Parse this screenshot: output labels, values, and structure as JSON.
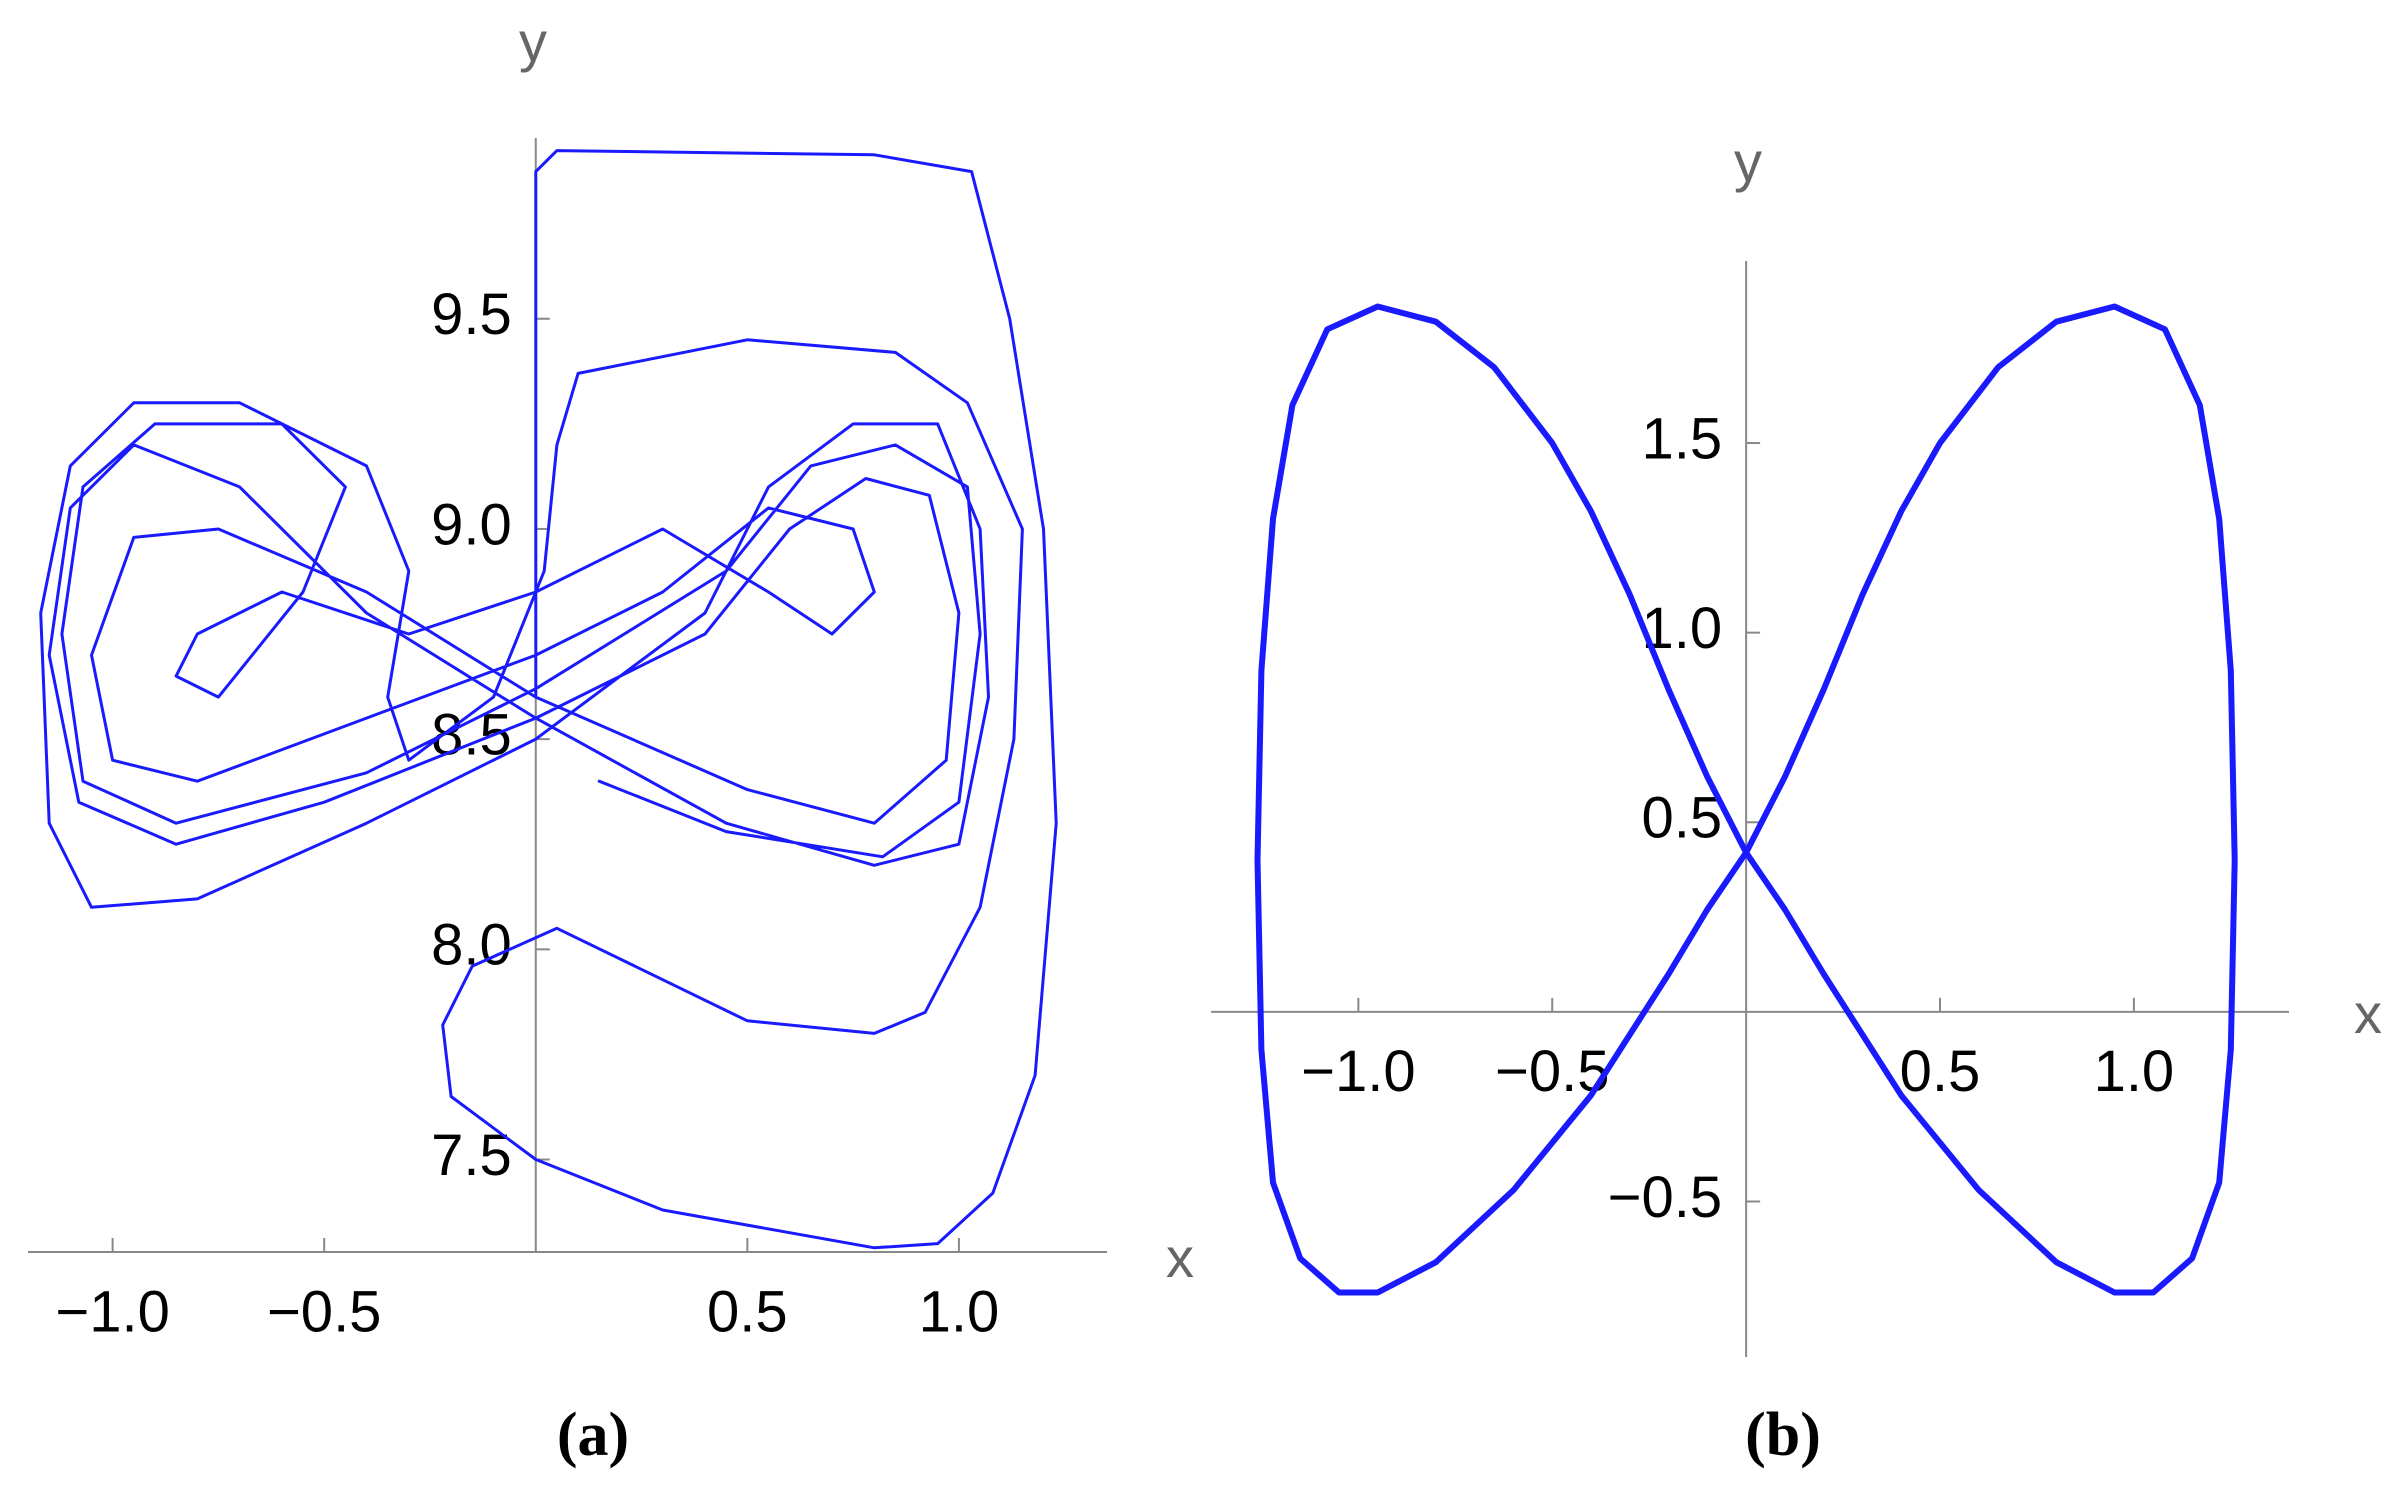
{
  "chart_data": [
    {
      "type": "line",
      "x_label": "x",
      "y_label": "y",
      "caption": "(a)",
      "color": "#1a1aff",
      "xlim": [
        -1.2,
        1.35
      ],
      "ylim": [
        7.28,
        9.93
      ],
      "xticks": [
        {
          "value": -1,
          "label": "−1.0"
        },
        {
          "value": -0.5,
          "label": "−0.5"
        },
        0.5,
        {
          "value": 1,
          "label": "1.0"
        }
      ],
      "yticks": [
        7.5,
        {
          "value": 8,
          "label": "8.0"
        },
        8.5,
        {
          "value": 9,
          "label": "9.0"
        },
        9.5
      ],
      "x": [
        0,
        0,
        0,
        0.05,
        0.8,
        1.03,
        1.12,
        1.2,
        1.23,
        1.18,
        1.08,
        0.95,
        0.8,
        0.3,
        0,
        -0.2,
        -0.22,
        -0.15,
        0.05,
        0.5,
        0.8,
        0.92,
        1.05,
        1.13,
        1.15,
        1.02,
        0.85,
        0.5,
        0.1,
        0.05,
        0.02,
        -0.1,
        -0.3,
        -0.35,
        -0.3,
        -0.4,
        -0.7,
        -0.95,
        -1.1,
        -1.17,
        -1.15,
        -1.05,
        -0.8,
        -0.4,
        0,
        0.4,
        0.55,
        0.75,
        0.95,
        1.05,
        1.07,
        1.0,
        0.8,
        0.45,
        0,
        -0.4,
        -0.7,
        -0.95,
        -1.1,
        -1.15,
        -1.08,
        -0.85,
        -0.5,
        0,
        0.4,
        0.6,
        0.78,
        0.93,
        1.0,
        0.97,
        0.8,
        0.5,
        0,
        -0.4,
        -0.75,
        -0.95,
        -1.05,
        -1.0,
        -0.8,
        -0.4,
        0,
        0.3,
        0.55,
        0.75,
        0.8,
        0.7,
        0.55,
        0.3,
        0,
        -0.3,
        -0.6,
        -0.8,
        -0.85,
        -0.75,
        -0.55,
        -0.45,
        -0.6,
        -0.9,
        -1.07,
        -1.12,
        -1.07,
        -0.85,
        -0.4,
        0,
        0.45,
        0.65,
        0.85,
        1.02,
        1.05,
        1.0,
        0.82,
        0.45,
        0.15
      ],
      "values": [
        8.6,
        9.3,
        9.85,
        9.9,
        9.89,
        9.85,
        9.5,
        9.0,
        8.3,
        7.7,
        7.42,
        7.3,
        7.29,
        7.38,
        7.5,
        7.65,
        7.82,
        7.96,
        8.05,
        7.83,
        7.8,
        7.85,
        8.1,
        8.5,
        9.0,
        9.3,
        9.42,
        9.45,
        9.37,
        9.2,
        8.9,
        8.6,
        8.45,
        8.6,
        8.9,
        9.15,
        9.3,
        9.3,
        9.15,
        8.8,
        8.3,
        8.1,
        8.12,
        8.3,
        8.5,
        8.8,
        9.1,
        9.25,
        9.25,
        9.0,
        8.6,
        8.25,
        8.2,
        8.3,
        8.55,
        8.8,
        9.1,
        9.2,
        9.05,
        8.7,
        8.35,
        8.25,
        8.35,
        8.55,
        8.75,
        9.0,
        9.12,
        9.08,
        8.8,
        8.45,
        8.3,
        8.38,
        8.6,
        8.85,
        9.0,
        8.98,
        8.7,
        8.45,
        8.4,
        8.55,
        8.7,
        8.85,
        9.05,
        9.0,
        8.85,
        8.75,
        8.85,
        9.0,
        8.85,
        8.75,
        8.85,
        8.75,
        8.65,
        8.6,
        8.85,
        9.1,
        9.25,
        9.25,
        9.1,
        8.75,
        8.4,
        8.3,
        8.42,
        8.62,
        8.9,
        9.15,
        9.2,
        9.1,
        8.75,
        8.35,
        8.22,
        8.28,
        8.4
      ]
    },
    {
      "type": "line",
      "x_label": "x",
      "y_label": "y",
      "caption": "(b)",
      "color": "#1a1aff",
      "xlim": [
        -1.38,
        1.4
      ],
      "ylim": [
        -0.91,
        1.98
      ],
      "xticks": [
        {
          "value": -1,
          "label": "−1.0"
        },
        {
          "value": -0.5,
          "label": "−0.5"
        },
        0.5,
        {
          "value": 1,
          "label": "1.0"
        }
      ],
      "yticks": [
        {
          "value": -0.5,
          "label": "−0.5"
        },
        0.5,
        {
          "value": 1,
          "label": "1.0"
        },
        1.5
      ],
      "x": [
        0,
        0.1,
        0.2,
        0.3,
        0.4,
        0.5,
        0.65,
        0.8,
        0.95,
        1.08,
        1.17,
        1.22,
        1.25,
        1.26,
        1.25,
        1.22,
        1.15,
        1.05,
        0.95,
        0.8,
        0.6,
        0.4,
        0.2,
        0.1,
        0,
        -0.1,
        -0.2,
        -0.3,
        -0.4,
        -0.5,
        -0.65,
        -0.8,
        -0.95,
        -1.08,
        -1.17,
        -1.22,
        -1.25,
        -1.26,
        -1.25,
        -1.22,
        -1.15,
        -1.05,
        -0.95,
        -0.8,
        -0.6,
        -0.4,
        -0.2,
        -0.1,
        0
      ],
      "values": [
        0.42,
        0.62,
        0.85,
        1.1,
        1.32,
        1.5,
        1.7,
        1.82,
        1.86,
        1.8,
        1.6,
        1.3,
        0.9,
        0.4,
        -0.1,
        -0.45,
        -0.65,
        -0.74,
        -0.74,
        -0.66,
        -0.47,
        -0.22,
        0.1,
        0.27,
        0.42,
        0.62,
        0.85,
        1.1,
        1.32,
        1.5,
        1.7,
        1.82,
        1.86,
        1.8,
        1.6,
        1.3,
        0.9,
        0.4,
        -0.1,
        -0.45,
        -0.65,
        -0.74,
        -0.74,
        -0.66,
        -0.47,
        -0.22,
        0.1,
        0.27,
        0.42
      ]
    }
  ]
}
